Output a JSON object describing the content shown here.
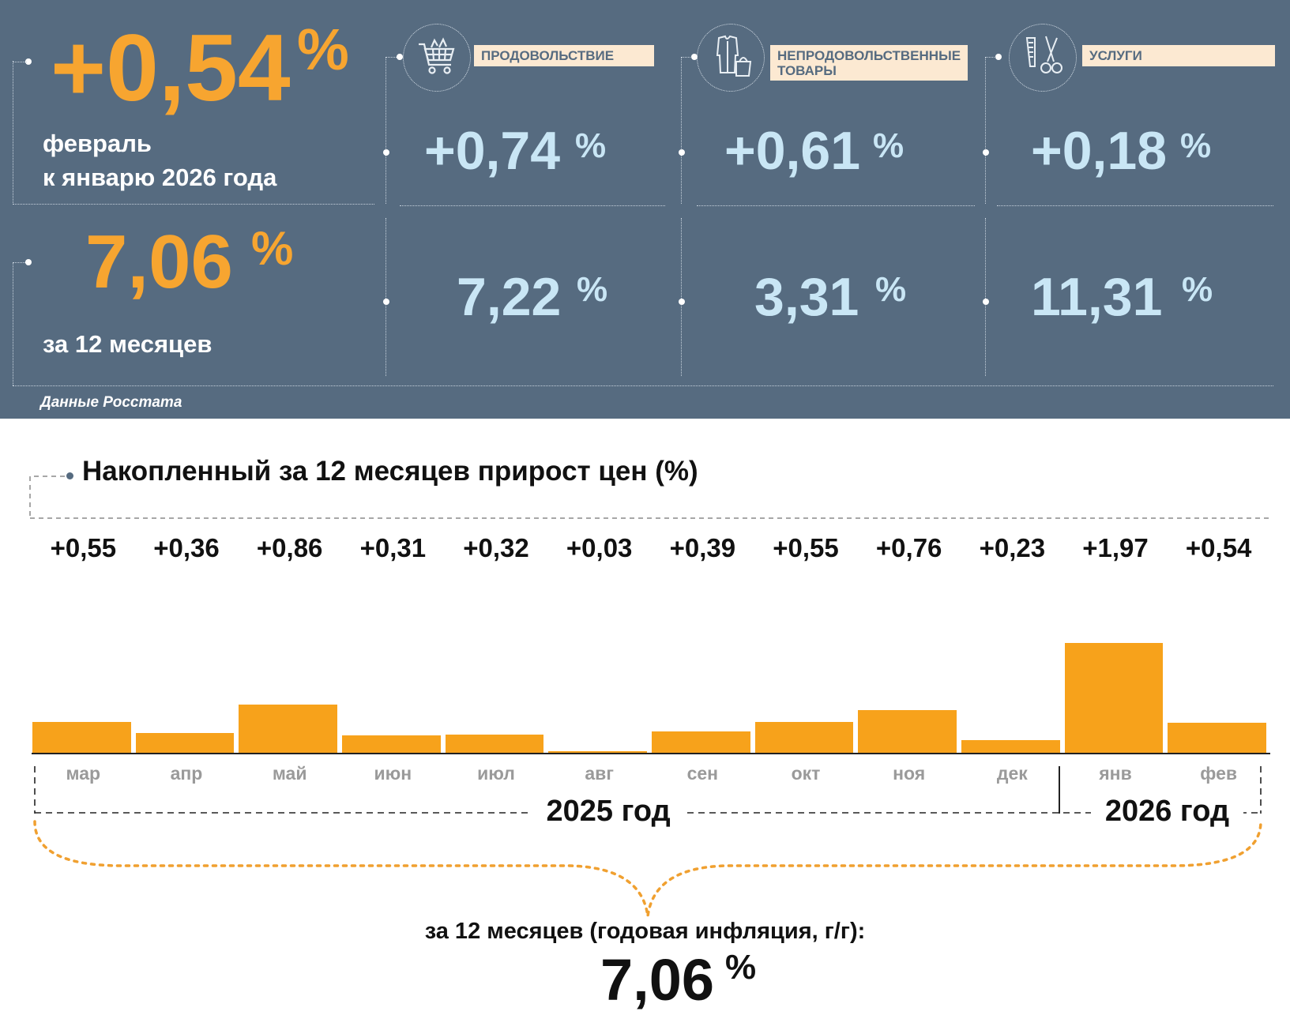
{
  "summary": {
    "monthly": {
      "value": "+0,54",
      "unit": "%",
      "line1": "февраль",
      "line2": "к январю 2026 года"
    },
    "annual": {
      "value": "7,06",
      "unit": "%",
      "label": "за 12 месяцев"
    },
    "source": "Данные Росстата"
  },
  "categories": [
    {
      "label": "ПРОДОВОЛЬСТВИЕ",
      "icon": "shopping-cart-icon",
      "monthly": "+0,74",
      "annual": "7,22",
      "unit": "%"
    },
    {
      "label": "НЕПРОДОВОЛЬСТВЕННЫЕ ТОВАРЫ",
      "icon": "clothing-bag-icon",
      "monthly": "+0,61",
      "annual": "3,31",
      "unit": "%"
    },
    {
      "label": "УСЛУГИ",
      "icon": "comb-scissors-icon",
      "monthly": "+0,18",
      "annual": "11,31",
      "unit": "%"
    }
  ],
  "colors": {
    "panel": "#566b80",
    "accent": "#f7a530",
    "light": "#c9e6f5",
    "bar": "#f7a21b"
  },
  "chart_data": {
    "type": "bar",
    "title": "Накопленный за 12 месяцев прирост цен (%)",
    "categories": [
      "мар",
      "апр",
      "май",
      "июн",
      "июл",
      "авг",
      "сен",
      "окт",
      "ноя",
      "дек",
      "янв",
      "фев"
    ],
    "values": [
      0.55,
      0.36,
      0.86,
      0.31,
      0.32,
      0.03,
      0.39,
      0.55,
      0.76,
      0.23,
      1.97,
      0.54
    ],
    "value_labels": [
      "+0,55",
      "+0,36",
      "+0,86",
      "+0,31",
      "+0,32",
      "+0,03",
      "+0,39",
      "+0,55",
      "+0,76",
      "+0,23",
      "+1,97",
      "+0,54"
    ],
    "years": [
      {
        "label": "2025 год",
        "from": 0,
        "to": 9
      },
      {
        "label": "2026 год",
        "from": 10,
        "to": 11
      }
    ],
    "ylim": [
      0,
      2.2
    ],
    "xlabel": "",
    "ylabel": ""
  },
  "footer": {
    "label": "за 12 месяцев (годовая инфляция, г/г):",
    "value": "7,06",
    "unit": "%"
  }
}
